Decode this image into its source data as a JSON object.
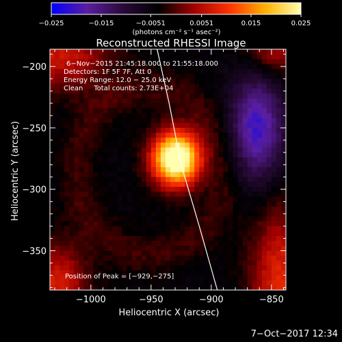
{
  "chart_data": {
    "type": "heatmap",
    "title": "Reconstructed RHESSI Image",
    "xlabel": "Heliocentric X (arcsec)",
    "ylabel": "Heliocentric Y (arcsec)",
    "xlim": [
      -1034,
      -838
    ],
    "ylim": [
      -382,
      -186
    ],
    "x_ticks": [
      -1000,
      -950,
      -900,
      -850
    ],
    "x_tick_labels": [
      "−1000",
      "−950",
      "−900",
      "−850"
    ],
    "y_ticks": [
      -200,
      -250,
      -300,
      -350
    ],
    "y_tick_labels": [
      "−200",
      "−250",
      "−300",
      "−350"
    ],
    "colorbar": {
      "range": [
        -0.025,
        0.025
      ],
      "ticks": [
        -0.025,
        -0.015,
        -0.0051,
        0.0051,
        0.015,
        0.025
      ],
      "tick_labels": [
        "−0.025",
        "−0.015",
        "−0.0051",
        "0.0051",
        "0.015",
        "0.025"
      ],
      "unit_label": "(photons cm⁻² s⁻¹ asec⁻²)",
      "colors": [
        "#0000ff",
        "#5a1ea0",
        "#2a0a3a",
        "#000000",
        "#a00000",
        "#ff3300",
        "#ffb000",
        "#ffffb0"
      ]
    },
    "peak": {
      "x": -929,
      "y": -275,
      "value": 0.025
    },
    "annotations": [
      "6−Nov−2015 21:45:18.000 to 21:55:18.000",
      "Detectors: 1F 5F 7F, Att 0",
      "Energy Range: 12.0 − 25.0 keV",
      "Clean     Total counts: 2.73E+04"
    ],
    "peak_label": "Position of Peak = [−929,−275]",
    "limb_curve": [
      [
        -945,
        -186
      ],
      [
        -935,
        -230
      ],
      [
        -925,
        -280
      ],
      [
        -910,
        -330
      ],
      [
        -895,
        -382
      ]
    ]
  },
  "timestamp": "7−Oct−2017 12:34"
}
